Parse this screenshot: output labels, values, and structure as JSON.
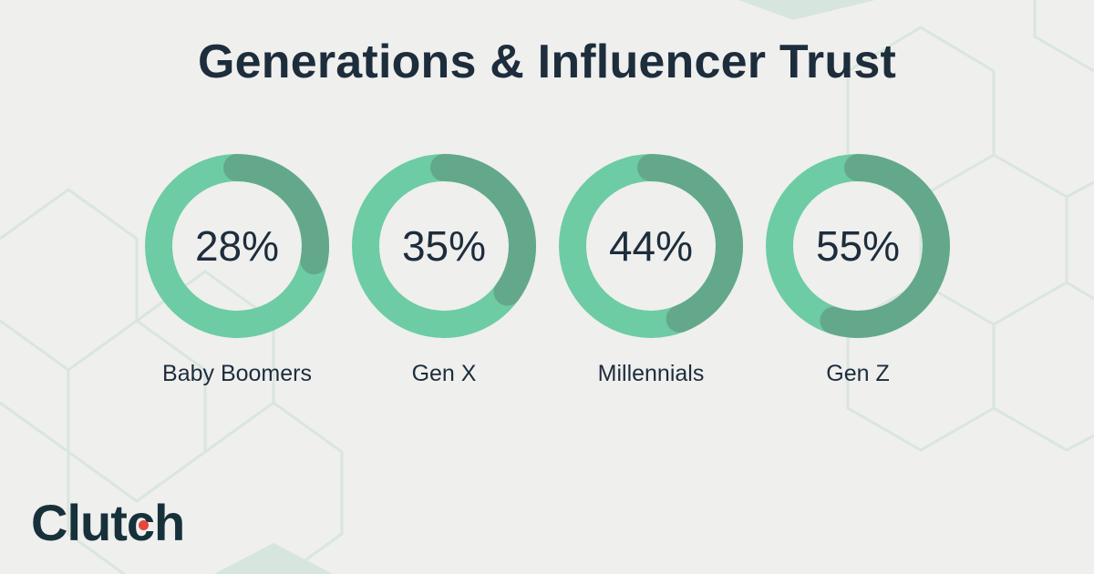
{
  "title": "Generations & Influencer Trust",
  "logo": {
    "text_before": "Clut",
    "text_dot_letter": "c",
    "text_after": "h",
    "dot_color": "#e7463a"
  },
  "colors": {
    "background": "#efefee",
    "ring_light": "#6dcca3",
    "ring_dark": "#64a88c",
    "text": "#1d2d3c",
    "pattern": "#d9e6df"
  },
  "chart_data": {
    "type": "donut",
    "categories": [
      "Baby Boomers",
      "Gen X",
      "Millennials",
      "Gen Z"
    ],
    "values": [
      28,
      35,
      44,
      55
    ],
    "value_labels": [
      "28%",
      "35%",
      "44%",
      "55%"
    ],
    "title": "Generations & Influencer Trust",
    "unit": "%",
    "max": 100
  }
}
